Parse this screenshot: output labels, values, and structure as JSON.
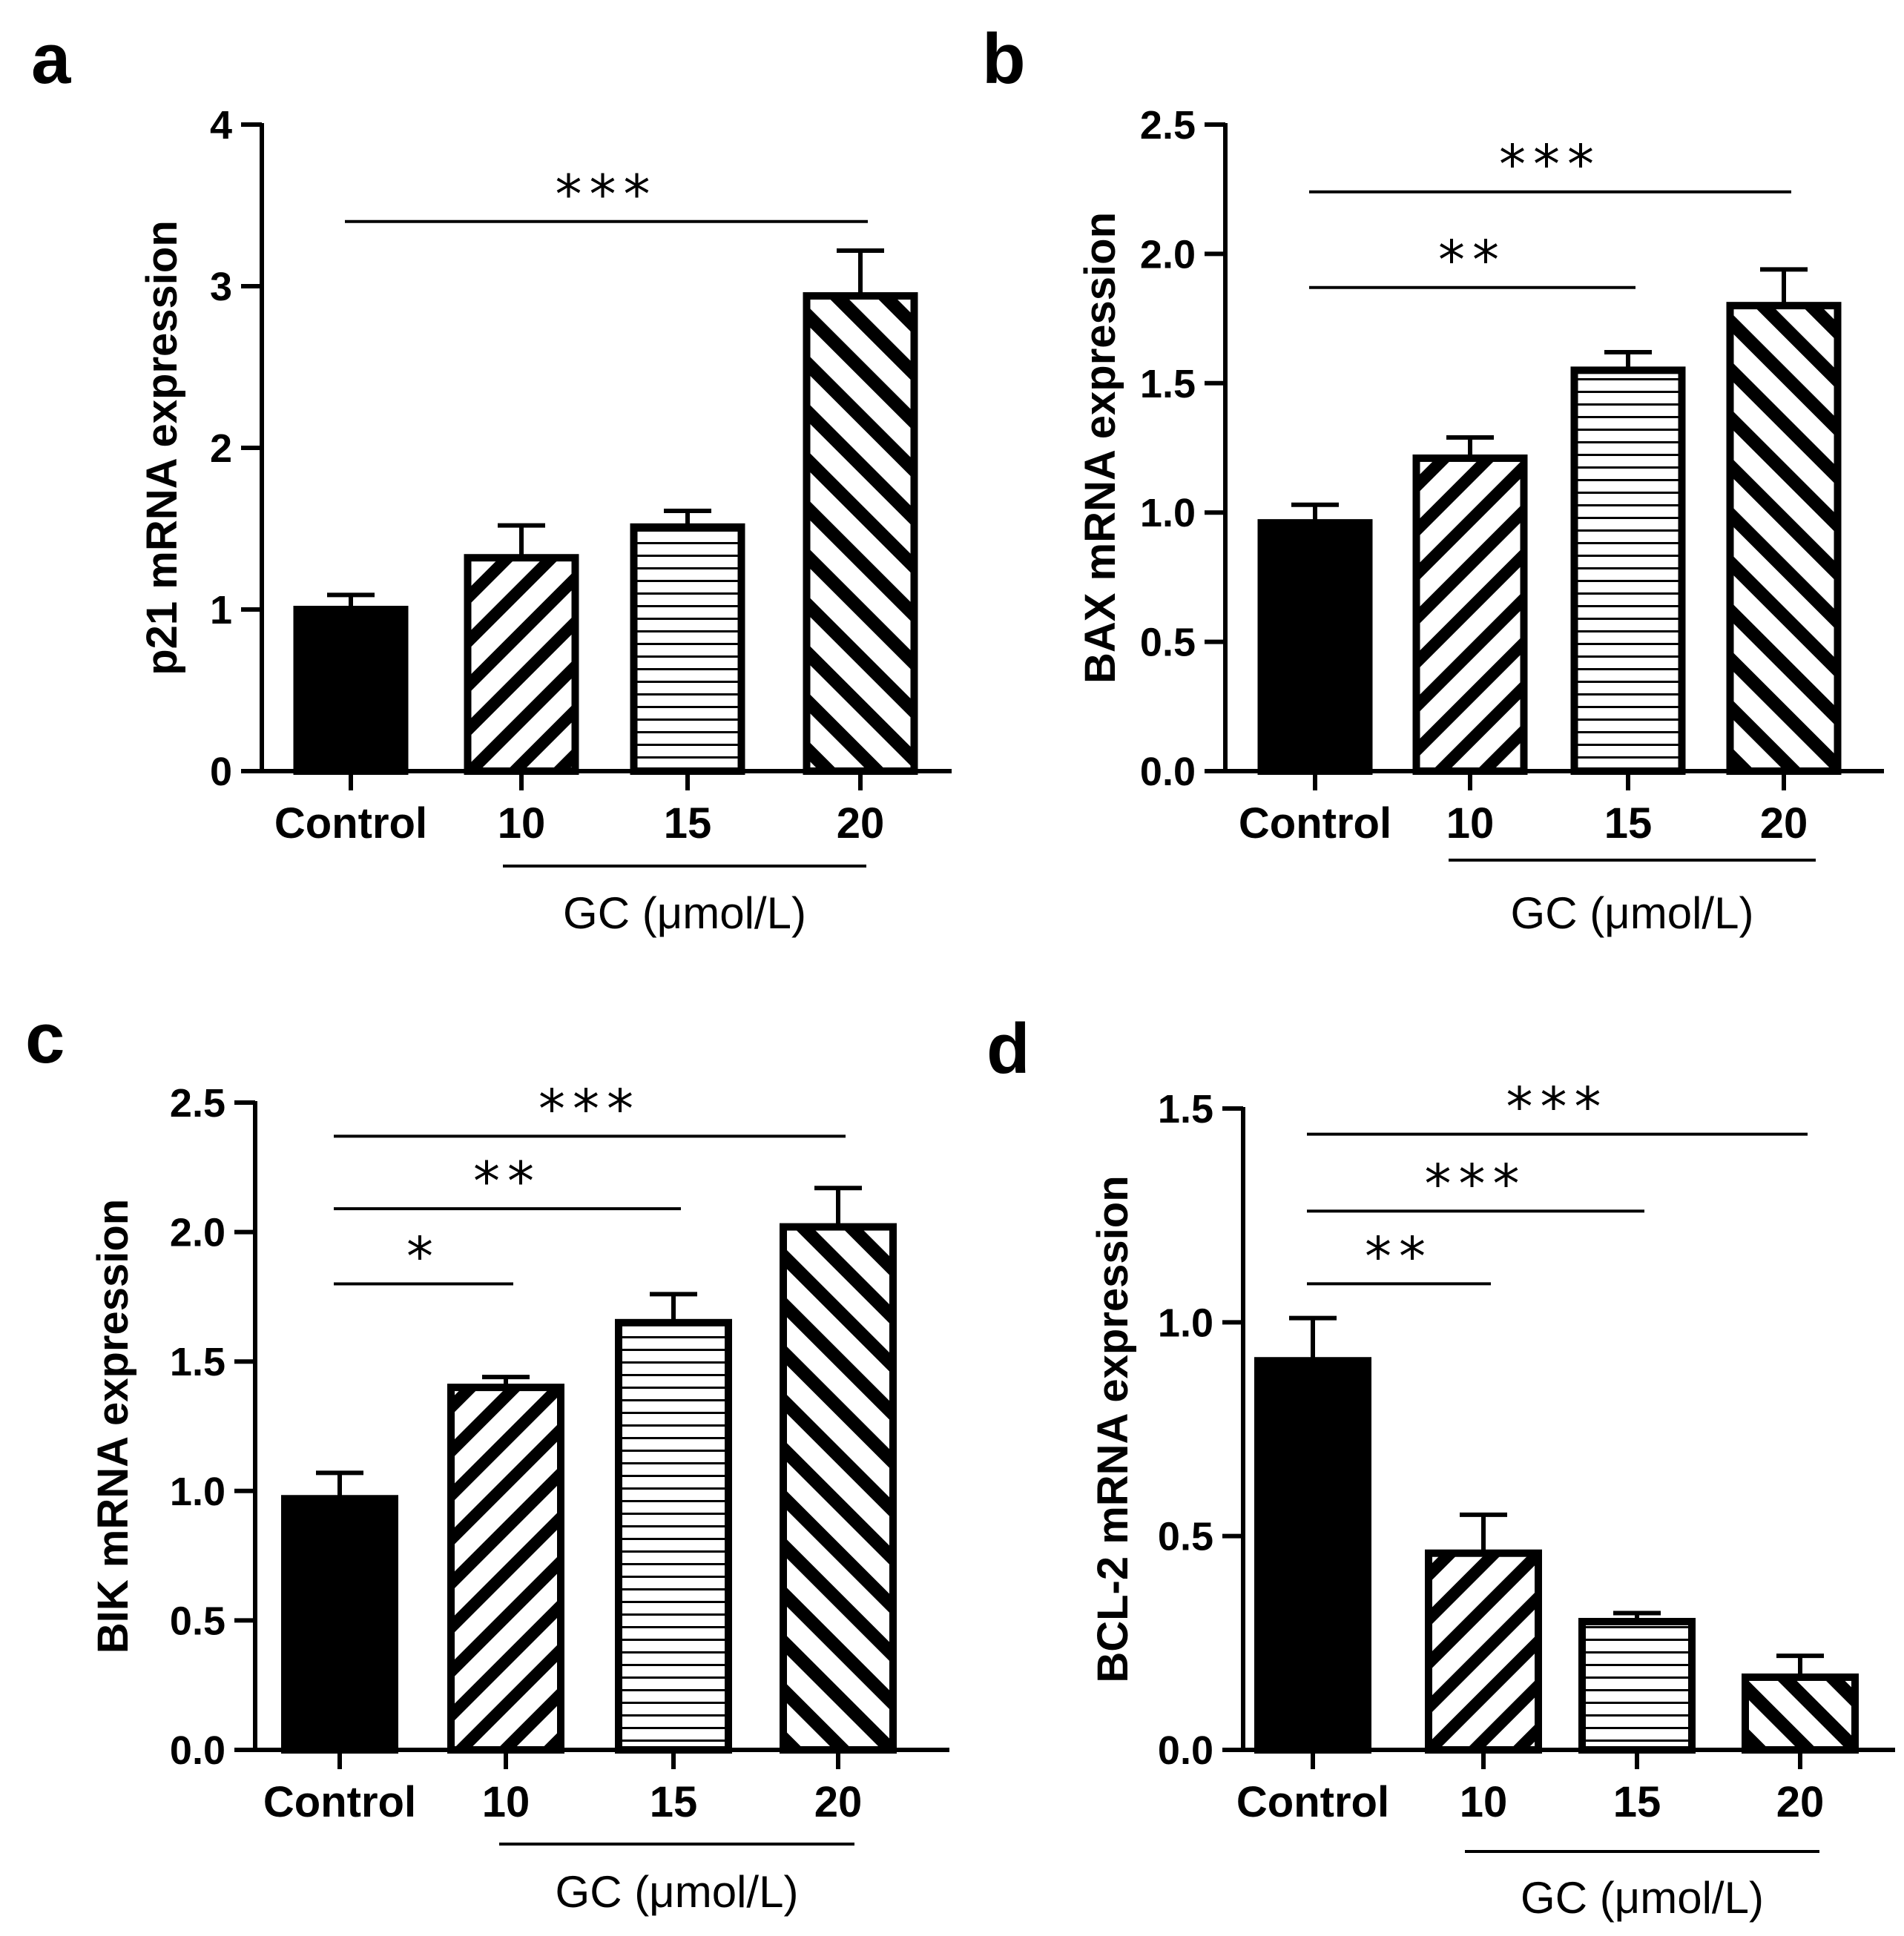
{
  "chart_data": [
    {
      "panel": "a",
      "type": "bar",
      "ylabel": "p21 mRNA expression",
      "ylim": [
        0,
        4
      ],
      "yticks": [
        "0",
        "1",
        "2",
        "3",
        "4"
      ],
      "categories": [
        "Control",
        "10",
        "15",
        "20"
      ],
      "values": [
        1.0,
        1.32,
        1.51,
        2.94
      ],
      "errors": [
        0.09,
        0.2,
        0.1,
        0.28
      ],
      "patterns": [
        "solid",
        "diag-up",
        "horizontal",
        "diag-down"
      ],
      "group_label": "GC (μmol/L)",
      "significance": [
        {
          "from": 0,
          "to": 3,
          "label": "***",
          "y": 3.4
        }
      ]
    },
    {
      "panel": "b",
      "type": "bar",
      "ylabel": "BAX mRNA expression",
      "ylim": [
        0,
        2.5
      ],
      "yticks": [
        "0.0",
        "0.5",
        "1.0",
        "1.5",
        "2.0",
        "2.5"
      ],
      "categories": [
        "Control",
        "10",
        "15",
        "20"
      ],
      "values": [
        0.96,
        1.21,
        1.55,
        1.8
      ],
      "errors": [
        0.07,
        0.08,
        0.07,
        0.14
      ],
      "patterns": [
        "solid",
        "diag-up",
        "horizontal",
        "diag-down"
      ],
      "group_label": "GC (μmol/L)",
      "significance": [
        {
          "from": 0,
          "to": 2,
          "label": "**",
          "y": 1.87
        },
        {
          "from": 0,
          "to": 3,
          "label": "***",
          "y": 2.24
        }
      ]
    },
    {
      "panel": "c",
      "type": "bar",
      "ylabel": "BIK mRNA expression",
      "ylim": [
        0,
        2.5
      ],
      "yticks": [
        "0.0",
        "0.5",
        "1.0",
        "1.5",
        "2.0",
        "2.5"
      ],
      "categories": [
        "Control",
        "10",
        "15",
        "20"
      ],
      "values": [
        0.97,
        1.4,
        1.65,
        2.02
      ],
      "errors": [
        0.1,
        0.04,
        0.11,
        0.15
      ],
      "patterns": [
        "solid",
        "diag-up",
        "horizontal",
        "diag-down"
      ],
      "group_label": "GC (μmol/L)",
      "significance": [
        {
          "from": 0,
          "to": 1,
          "label": "*",
          "y": 1.8
        },
        {
          "from": 0,
          "to": 2,
          "label": "**",
          "y": 2.09
        },
        {
          "from": 0,
          "to": 3,
          "label": "***",
          "y": 2.37
        }
      ]
    },
    {
      "panel": "d",
      "type": "bar",
      "ylabel": "BCL-2 mRNA expression",
      "ylim": [
        0,
        1.5
      ],
      "yticks": [
        "0.0",
        "0.5",
        "1.0",
        "1.5"
      ],
      "categories": [
        "Control",
        "10",
        "15",
        "20"
      ],
      "values": [
        0.91,
        0.46,
        0.3,
        0.17
      ],
      "errors": [
        0.1,
        0.09,
        0.02,
        0.05
      ],
      "patterns": [
        "solid",
        "diag-up",
        "horizontal",
        "diag-down"
      ],
      "group_label": "GC (μmol/L)",
      "significance": [
        {
          "from": 0,
          "to": 1,
          "label": "**",
          "y": 1.09
        },
        {
          "from": 0,
          "to": 2,
          "label": "***",
          "y": 1.26
        },
        {
          "from": 0,
          "to": 3,
          "label": "***",
          "y": 1.44
        }
      ]
    }
  ]
}
